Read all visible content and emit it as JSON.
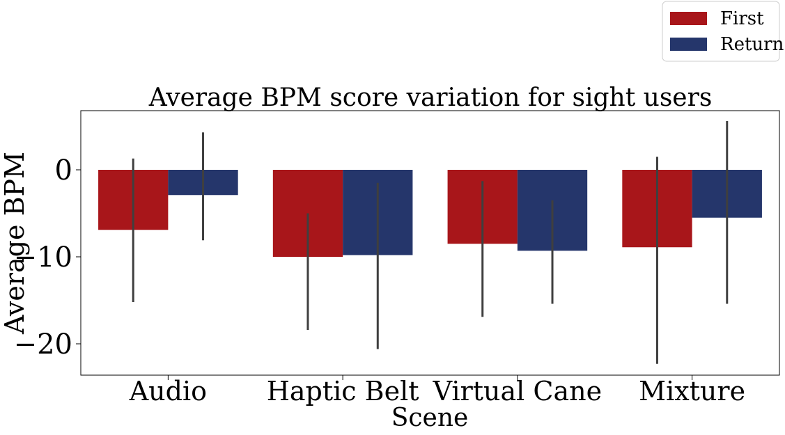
{
  "chart_data": {
    "type": "bar",
    "title": "Average BPM score variation for sight users",
    "xlabel": "Scene",
    "ylabel": "Average BPM",
    "categories": [
      "Audio",
      "Haptic Belt",
      "Virtual Cane",
      "Mixture"
    ],
    "series": [
      {
        "name": "First",
        "color": "#a8161a",
        "values": [
          -6.9,
          -10.0,
          -8.5,
          -8.9
        ],
        "error_low": [
          -15.2,
          -18.4,
          -16.9,
          -22.3
        ],
        "error_high": [
          1.3,
          -5.0,
          -1.3,
          1.5
        ]
      },
      {
        "name": "Return",
        "color": "#25366b",
        "values": [
          -2.9,
          -9.8,
          -9.3,
          -5.5
        ],
        "error_low": [
          -8.1,
          -20.6,
          -15.4,
          -15.4
        ],
        "error_high": [
          4.3,
          -1.5,
          -3.5,
          5.6
        ]
      }
    ],
    "yticks": [
      0,
      -10,
      -20
    ],
    "ylim": [
      -23.6,
      6.8
    ],
    "grid": false,
    "legend_position": "top-right",
    "error_bar_color": "#3f3f3f"
  }
}
